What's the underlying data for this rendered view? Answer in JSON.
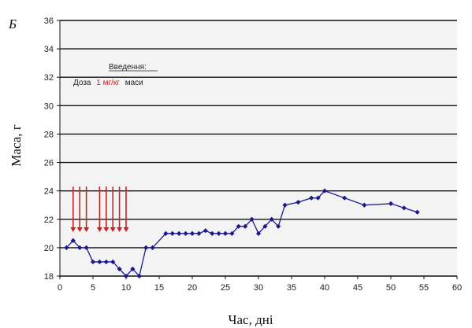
{
  "panel_label": "Б",
  "annotation": {
    "line1": "Введення:",
    "line2_prefix": "Доза",
    "line2_highlight": "1 мг/кг",
    "line2_suffix": "маси"
  },
  "colors": {
    "series": "#1a1a8c",
    "arrows": "#cc2222",
    "grid": "#111111",
    "background": "#f3f3f3"
  },
  "chart_data": {
    "type": "line",
    "title": "",
    "xlabel": "Час, дні",
    "ylabel": "Маса, г",
    "xlim": [
      0,
      60
    ],
    "ylim": [
      18,
      36
    ],
    "xticks": [
      0,
      5,
      10,
      15,
      20,
      25,
      30,
      35,
      40,
      45,
      50,
      55,
      60
    ],
    "yticks": [
      18,
      20,
      22,
      24,
      26,
      28,
      30,
      32,
      34,
      36
    ],
    "grid": "horizontal",
    "injection_days": [
      2,
      3,
      4,
      6,
      7,
      8,
      9,
      10
    ],
    "series": [
      {
        "x": [
          1,
          2,
          3,
          4,
          5,
          6,
          7,
          8,
          9,
          10,
          11,
          12,
          13,
          14,
          16,
          17,
          18,
          19,
          20,
          21,
          22,
          23,
          24,
          25,
          26,
          27,
          28,
          29,
          30,
          31,
          32,
          33,
          34,
          36,
          38,
          39,
          40,
          43,
          46,
          50,
          52,
          54
        ],
        "values": [
          20.0,
          20.5,
          20.0,
          20.0,
          19.0,
          19.0,
          19.0,
          19.0,
          18.5,
          18.0,
          18.5,
          18.0,
          20.0,
          20.0,
          21.0,
          21.0,
          21.0,
          21.0,
          21.0,
          21.0,
          21.2,
          21.0,
          21.0,
          21.0,
          21.0,
          21.5,
          21.5,
          22.0,
          21.0,
          21.5,
          22.0,
          21.5,
          23.0,
          23.2,
          23.5,
          23.5,
          24.0,
          23.5,
          23.0,
          23.1,
          22.8,
          22.5
        ]
      }
    ]
  }
}
